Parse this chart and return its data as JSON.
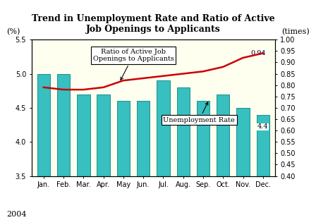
{
  "title": "Trend in Unemployment Rate and Ratio of Active\nJob Openings to Applicants",
  "months": [
    "Jan.",
    "Feb.",
    "Mar.",
    "Apr.",
    "May",
    "Jun.",
    "Jul.",
    "Aug.",
    "Sep.",
    "Oct.",
    "Nov.",
    "Dec."
  ],
  "unemployment_rate": [
    5.0,
    5.0,
    4.7,
    4.7,
    4.6,
    4.6,
    4.9,
    4.8,
    4.6,
    4.7,
    4.5,
    4.4
  ],
  "job_ratio": [
    0.79,
    0.78,
    0.78,
    0.79,
    0.82,
    0.83,
    0.84,
    0.85,
    0.86,
    0.88,
    0.92,
    0.94
  ],
  "bar_color": "#38BFBF",
  "line_color": "#CC0000",
  "background_color": "#FFFFF0",
  "left_ylabel": "(%)",
  "right_ylabel": "(times)",
  "ylim_left": [
    3.5,
    5.5
  ],
  "ylim_right": [
    0.4,
    1.0
  ],
  "yticks_left": [
    3.5,
    4.0,
    4.5,
    5.0,
    5.5
  ],
  "yticks_right": [
    0.4,
    0.45,
    0.5,
    0.55,
    0.6,
    0.65,
    0.7,
    0.75,
    0.8,
    0.85,
    0.9,
    0.95,
    1.0
  ],
  "year_label": "2004",
  "annotation_ratio_text": "Ratio of Active Job\nOpenings to Applicants",
  "annotation_unemp_text": "Unemployment Rate",
  "last_ratio_label": "0.94",
  "last_bar_label": "4.4"
}
